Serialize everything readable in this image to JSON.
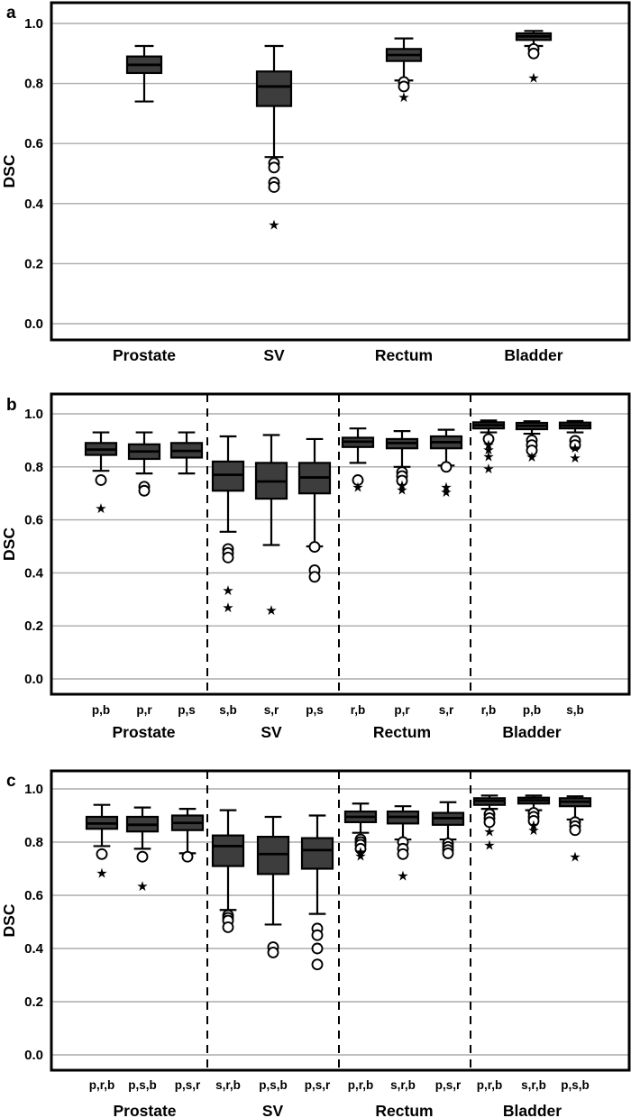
{
  "chart_data": {
    "type": "box",
    "title": "",
    "ylabel": "DSC",
    "ylim": [
      -0.06,
      1.07
    ],
    "grid": "horizontal",
    "yticks": [
      {
        "v": 1.0,
        "t": "1.0"
      },
      {
        "v": 0.8,
        "t": "0.8"
      },
      {
        "v": 0.6,
        "t": "0.6"
      },
      {
        "v": 0.4,
        "t": "0.4"
      },
      {
        "v": 0.2,
        "t": "0.2"
      },
      {
        "v": 0.0,
        "t": "0.0"
      }
    ],
    "box_fill_color": "#3d3d3d",
    "box_edge_color": "#000000",
    "gridline_color": "#ababab",
    "panels": [
      {
        "letter": "a",
        "groups": [
          {
            "label": "Prostate",
            "boxes": [
              {
                "sub": "",
                "lo": 0.74,
                "q1": 0.835,
                "med": 0.862,
                "q3": 0.89,
                "hi": 0.925,
                "circles": [],
                "stars": []
              }
            ]
          },
          {
            "label": "SV",
            "boxes": [
              {
                "sub": "",
                "lo": 0.555,
                "q1": 0.725,
                "med": 0.79,
                "q3": 0.84,
                "hi": 0.925,
                "circles": [
                  0.535,
                  0.52,
                  0.47,
                  0.455
                ],
                "stars": [
                  0.33
                ]
              }
            ]
          },
          {
            "label": "Rectum",
            "boxes": [
              {
                "sub": "",
                "lo": 0.81,
                "q1": 0.875,
                "med": 0.895,
                "q3": 0.915,
                "hi": 0.95,
                "circles": [
                  0.805,
                  0.79
                ],
                "stars": [
                  0.755
                ]
              }
            ]
          },
          {
            "label": "Bladder",
            "boxes": [
              {
                "sub": "",
                "lo": 0.925,
                "q1": 0.945,
                "med": 0.957,
                "q3": 0.967,
                "hi": 0.975,
                "circles": [
                  0.915,
                  0.9
                ],
                "stars": [
                  0.82
                ]
              }
            ]
          }
        ]
      },
      {
        "letter": "b",
        "groups": [
          {
            "label": "Prostate",
            "boxes": [
              {
                "sub": "p,b",
                "lo": 0.785,
                "q1": 0.845,
                "med": 0.865,
                "q3": 0.89,
                "hi": 0.93,
                "circles": [
                  0.75
                ],
                "stars": [
                  0.645
                ]
              },
              {
                "sub": "p,r",
                "lo": 0.775,
                "q1": 0.83,
                "med": 0.858,
                "q3": 0.885,
                "hi": 0.93,
                "circles": [
                  0.725,
                  0.71
                ],
                "stars": []
              },
              {
                "sub": "p,s",
                "lo": 0.775,
                "q1": 0.835,
                "med": 0.86,
                "q3": 0.89,
                "hi": 0.93,
                "circles": [],
                "stars": []
              }
            ]
          },
          {
            "label": "SV",
            "boxes": [
              {
                "sub": "s,b",
                "lo": 0.555,
                "q1": 0.71,
                "med": 0.77,
                "q3": 0.82,
                "hi": 0.915,
                "circles": [
                  0.49,
                  0.475,
                  0.458
                ],
                "stars": [
                  0.335,
                  0.27
                ]
              },
              {
                "sub": "s,r",
                "lo": 0.505,
                "q1": 0.68,
                "med": 0.745,
                "q3": 0.815,
                "hi": 0.92,
                "circles": [],
                "stars": [
                  0.26
                ]
              },
              {
                "sub": "p,s",
                "lo": 0.5,
                "q1": 0.7,
                "med": 0.76,
                "q3": 0.815,
                "hi": 0.905,
                "circles": [
                  0.498,
                  0.41,
                  0.385
                ],
                "stars": []
              }
            ]
          },
          {
            "label": "Rectum",
            "boxes": [
              {
                "sub": "r,b",
                "lo": 0.815,
                "q1": 0.875,
                "med": 0.895,
                "q3": 0.91,
                "hi": 0.945,
                "circles": [
                  0.75
                ],
                "stars": [
                  0.725
                ]
              },
              {
                "sub": "p,r",
                "lo": 0.8,
                "q1": 0.87,
                "med": 0.89,
                "q3": 0.905,
                "hi": 0.935,
                "circles": [
                  0.78,
                  0.765,
                  0.748
                ],
                "stars": [
                  0.732,
                  0.715
                ]
              },
              {
                "sub": "s,r",
                "lo": 0.805,
                "q1": 0.87,
                "med": 0.893,
                "q3": 0.915,
                "hi": 0.94,
                "circles": [
                  0.8
                ],
                "stars": [
                  0.725,
                  0.705
                ]
              }
            ]
          },
          {
            "label": "Bladder",
            "boxes": [
              {
                "sub": "r,b",
                "lo": 0.93,
                "q1": 0.945,
                "med": 0.957,
                "q3": 0.968,
                "hi": 0.975,
                "circles": [
                  0.905
                ],
                "stars": [
                  0.885,
                  0.865,
                  0.84,
                  0.795
                ]
              },
              {
                "sub": "p,b",
                "lo": 0.925,
                "q1": 0.942,
                "med": 0.955,
                "q3": 0.966,
                "hi": 0.972,
                "circles": [
                  0.9,
                  0.882,
                  0.862
                ],
                "stars": [
                  0.838
                ]
              },
              {
                "sub": "s,b",
                "lo": 0.93,
                "q1": 0.945,
                "med": 0.956,
                "q3": 0.967,
                "hi": 0.973,
                "circles": [
                  0.898,
                  0.882
                ],
                "stars": [
                  0.872,
                  0.835
                ]
              }
            ]
          }
        ]
      },
      {
        "letter": "c",
        "groups": [
          {
            "label": "Prostate",
            "boxes": [
              {
                "sub": "p,r,b",
                "lo": 0.785,
                "q1": 0.85,
                "med": 0.87,
                "q3": 0.895,
                "hi": 0.94,
                "circles": [
                  0.755
                ],
                "stars": [
                  0.685
                ]
              },
              {
                "sub": "p,s,b",
                "lo": 0.775,
                "q1": 0.84,
                "med": 0.865,
                "q3": 0.895,
                "hi": 0.93,
                "circles": [
                  0.745
                ],
                "stars": [
                  0.635
                ]
              },
              {
                "sub": "p,s,r",
                "lo": 0.758,
                "q1": 0.845,
                "med": 0.872,
                "q3": 0.9,
                "hi": 0.925,
                "circles": [
                  0.745
                ],
                "stars": []
              }
            ]
          },
          {
            "label": "SV",
            "boxes": [
              {
                "sub": "s,r,b",
                "lo": 0.545,
                "q1": 0.71,
                "med": 0.785,
                "q3": 0.825,
                "hi": 0.92,
                "circles": [
                  0.525,
                  0.515,
                  0.505,
                  0.48
                ],
                "stars": []
              },
              {
                "sub": "p,s,b",
                "lo": 0.49,
                "q1": 0.68,
                "med": 0.755,
                "q3": 0.82,
                "hi": 0.895,
                "circles": [
                  0.405,
                  0.385
                ],
                "stars": []
              },
              {
                "sub": "p,s,r",
                "lo": 0.53,
                "q1": 0.7,
                "med": 0.77,
                "q3": 0.815,
                "hi": 0.9,
                "circles": [
                  0.475,
                  0.45,
                  0.4,
                  0.34
                ],
                "stars": []
              }
            ]
          },
          {
            "label": "Rectum",
            "boxes": [
              {
                "sub": "p,r,b",
                "lo": 0.835,
                "q1": 0.875,
                "med": 0.895,
                "q3": 0.915,
                "hi": 0.945,
                "circles": [
                  0.81,
                  0.8,
                  0.79,
                  0.775
                ],
                "stars": [
                  0.765,
                  0.75
                ]
              },
              {
                "sub": "s,r,b",
                "lo": 0.81,
                "q1": 0.87,
                "med": 0.895,
                "q3": 0.915,
                "hi": 0.935,
                "circles": [
                  0.8,
                  0.775,
                  0.755
                ],
                "stars": [
                  0.675
                ]
              },
              {
                "sub": "p,s,r",
                "lo": 0.81,
                "q1": 0.865,
                "med": 0.89,
                "q3": 0.91,
                "hi": 0.95,
                "circles": [
                  0.795,
                  0.782,
                  0.77,
                  0.758
                ],
                "stars": []
              }
            ]
          },
          {
            "label": "Bladder",
            "boxes": [
              {
                "sub": "p,r,b",
                "lo": 0.925,
                "q1": 0.94,
                "med": 0.955,
                "q3": 0.965,
                "hi": 0.975,
                "circles": [
                  0.905,
                  0.89,
                  0.875
                ],
                "stars": [
                  0.84,
                  0.79
                ]
              },
              {
                "sub": "s,r,b",
                "lo": 0.92,
                "q1": 0.945,
                "med": 0.957,
                "q3": 0.967,
                "hi": 0.975,
                "circles": [
                  0.91,
                  0.895,
                  0.88
                ],
                "stars": [
                  0.865,
                  0.845
                ]
              },
              {
                "sub": "p,s,b",
                "lo": 0.885,
                "q1": 0.935,
                "med": 0.952,
                "q3": 0.965,
                "hi": 0.972,
                "circles": [
                  0.875,
                  0.86,
                  0.845
                ],
                "stars": [
                  0.745
                ]
              }
            ]
          }
        ]
      }
    ]
  }
}
